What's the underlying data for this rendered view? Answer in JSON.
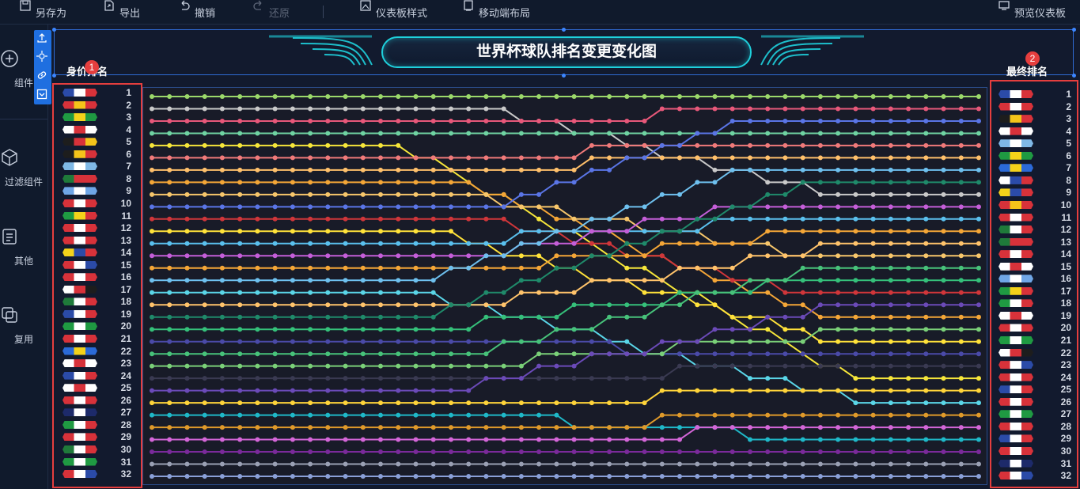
{
  "toolbar": {
    "save_as": "另存为",
    "export": "导出",
    "undo": "撤销",
    "redo": "还原",
    "dashboard_style": "仪表板样式",
    "mobile_layout": "移动端布局",
    "preview": "预览仪表板"
  },
  "sidebar": {
    "items": [
      {
        "label": "组件",
        "icon": "plus-circle-icon"
      },
      {
        "label": "过滤组件",
        "icon": "cube-icon"
      },
      {
        "label": "其他",
        "icon": "document-icon"
      },
      {
        "label": "复用",
        "icon": "layers-icon"
      }
    ]
  },
  "float_tools": [
    "upload-icon",
    "crosshair-icon",
    "link-icon",
    "checkbox-icon"
  ],
  "title": "世界杯球队排名变更变化图",
  "left_header": "身价排名",
  "right_header": "最终排名",
  "badges": {
    "left": "1",
    "right": "2"
  },
  "colors": {
    "accent": "#1fd0dc",
    "highlight": "#e53e3e",
    "selection": "#3c86ff"
  },
  "left_ranks": [
    {
      "rank": "1",
      "flag": [
        "#2b4ba8",
        "#ffffff",
        "#d8323a"
      ]
    },
    {
      "rank": "2",
      "flag": [
        "#d8323a",
        "#f4c41a",
        "#d8323a"
      ]
    },
    {
      "rank": "3",
      "flag": [
        "#1f9a42",
        "#f4d21a",
        "#1f9a42"
      ]
    },
    {
      "rank": "4",
      "flag": [
        "#ffffff",
        "#d8323a",
        "#ffffff"
      ]
    },
    {
      "rank": "5",
      "flag": [
        "#1d1d1d",
        "#d8323a",
        "#f4c41a"
      ]
    },
    {
      "rank": "6",
      "flag": [
        "#1d1d1d",
        "#f4c41a",
        "#d8323a"
      ]
    },
    {
      "rank": "7",
      "flag": [
        "#7fb8e6",
        "#ffffff",
        "#7fb8e6"
      ]
    },
    {
      "rank": "8",
      "flag": [
        "#1f7a3a",
        "#d8323a",
        "#d8323a"
      ]
    },
    {
      "rank": "9",
      "flag": [
        "#6fa6e6",
        "#ffffff",
        "#6fa6e6"
      ]
    },
    {
      "rank": "10",
      "flag": [
        "#d8323a",
        "#ffffff",
        "#d8323a"
      ]
    },
    {
      "rank": "11",
      "flag": [
        "#1f9a42",
        "#f4d21a",
        "#d8323a"
      ]
    },
    {
      "rank": "12",
      "flag": [
        "#d8323a",
        "#ffffff",
        "#d8323a"
      ]
    },
    {
      "rank": "13",
      "flag": [
        "#d8323a",
        "#ffffff",
        "#d8323a"
      ]
    },
    {
      "rank": "14",
      "flag": [
        "#f4d21a",
        "#2b4ba8",
        "#d8323a"
      ]
    },
    {
      "rank": "15",
      "flag": [
        "#d8323a",
        "#ffffff",
        "#2b4ba8"
      ]
    },
    {
      "rank": "16",
      "flag": [
        "#d8323a",
        "#ffffff",
        "#d8323a"
      ]
    },
    {
      "rank": "17",
      "flag": [
        "#ffffff",
        "#d8323a",
        "#1d1d1d"
      ]
    },
    {
      "rank": "18",
      "flag": [
        "#1f7a3a",
        "#ffffff",
        "#d8323a"
      ]
    },
    {
      "rank": "19",
      "flag": [
        "#2b4ba8",
        "#ffffff",
        "#d8323a"
      ]
    },
    {
      "rank": "20",
      "flag": [
        "#1f9a42",
        "#ffffff",
        "#1f9a42"
      ]
    },
    {
      "rank": "21",
      "flag": [
        "#d8323a",
        "#ffffff",
        "#d8323a"
      ]
    },
    {
      "rank": "22",
      "flag": [
        "#2b6ad8",
        "#f4d21a",
        "#2b6ad8"
      ]
    },
    {
      "rank": "23",
      "flag": [
        "#ffffff",
        "#d8323a",
        "#ffffff"
      ]
    },
    {
      "rank": "24",
      "flag": [
        "#2b4ba8",
        "#ffffff",
        "#d8323a"
      ]
    },
    {
      "rank": "25",
      "flag": [
        "#ffffff",
        "#d8323a",
        "#ffffff"
      ]
    },
    {
      "rank": "26",
      "flag": [
        "#d8323a",
        "#ffffff",
        "#d8323a"
      ]
    },
    {
      "rank": "27",
      "flag": [
        "#1d2a6a",
        "#ffffff",
        "#1d2a6a"
      ]
    },
    {
      "rank": "28",
      "flag": [
        "#1f9a42",
        "#ffffff",
        "#d8323a"
      ]
    },
    {
      "rank": "29",
      "flag": [
        "#d8323a",
        "#ffffff",
        "#d8323a"
      ]
    },
    {
      "rank": "30",
      "flag": [
        "#1f7a3a",
        "#ffffff",
        "#d8323a"
      ]
    },
    {
      "rank": "31",
      "flag": [
        "#1f9a42",
        "#ffffff",
        "#1f9a42"
      ]
    },
    {
      "rank": "32",
      "flag": [
        "#d8323a",
        "#ffffff",
        "#2b4ba8"
      ]
    }
  ],
  "right_ranks": [
    {
      "rank": "1",
      "flag": [
        "#2b4ba8",
        "#ffffff",
        "#d8323a"
      ]
    },
    {
      "rank": "2",
      "flag": [
        "#d8323a",
        "#ffffff",
        "#d8323a"
      ]
    },
    {
      "rank": "3",
      "flag": [
        "#1d1d1d",
        "#f4c41a",
        "#d8323a"
      ]
    },
    {
      "rank": "4",
      "flag": [
        "#ffffff",
        "#d8323a",
        "#ffffff"
      ]
    },
    {
      "rank": "5",
      "flag": [
        "#7fb8e6",
        "#ffffff",
        "#7fb8e6"
      ]
    },
    {
      "rank": "6",
      "flag": [
        "#1f9a42",
        "#f4d21a",
        "#1f9a42"
      ]
    },
    {
      "rank": "7",
      "flag": [
        "#2b6ad8",
        "#f4d21a",
        "#2b6ad8"
      ]
    },
    {
      "rank": "8",
      "flag": [
        "#ffffff",
        "#2b4ba8",
        "#d8323a"
      ]
    },
    {
      "rank": "9",
      "flag": [
        "#f4d21a",
        "#2b4ba8",
        "#d8323a"
      ]
    },
    {
      "rank": "10",
      "flag": [
        "#d8323a",
        "#f4c41a",
        "#d8323a"
      ]
    },
    {
      "rank": "11",
      "flag": [
        "#d8323a",
        "#ffffff",
        "#d8323a"
      ]
    },
    {
      "rank": "12",
      "flag": [
        "#1f7a3a",
        "#ffffff",
        "#d8323a"
      ]
    },
    {
      "rank": "13",
      "flag": [
        "#1f7a3a",
        "#d8323a",
        "#d8323a"
      ]
    },
    {
      "rank": "14",
      "flag": [
        "#d8323a",
        "#ffffff",
        "#d8323a"
      ]
    },
    {
      "rank": "15",
      "flag": [
        "#ffffff",
        "#d8323a",
        "#ffffff"
      ]
    },
    {
      "rank": "16",
      "flag": [
        "#6fa6e6",
        "#ffffff",
        "#6fa6e6"
      ]
    },
    {
      "rank": "17",
      "flag": [
        "#1f9a42",
        "#f4d21a",
        "#d8323a"
      ]
    },
    {
      "rank": "18",
      "flag": [
        "#1f9a42",
        "#ffffff",
        "#d8323a"
      ]
    },
    {
      "rank": "19",
      "flag": [
        "#ffffff",
        "#d8323a",
        "#ffffff"
      ]
    },
    {
      "rank": "20",
      "flag": [
        "#d8323a",
        "#ffffff",
        "#d8323a"
      ]
    },
    {
      "rank": "21",
      "flag": [
        "#1f9a42",
        "#ffffff",
        "#1f9a42"
      ]
    },
    {
      "rank": "22",
      "flag": [
        "#ffffff",
        "#d8323a",
        "#1d1d1d"
      ]
    },
    {
      "rank": "23",
      "flag": [
        "#d8323a",
        "#ffffff",
        "#2b4ba8"
      ]
    },
    {
      "rank": "24",
      "flag": [
        "#d8323a",
        "#ffffff",
        "#d8323a"
      ]
    },
    {
      "rank": "25",
      "flag": [
        "#2b4ba8",
        "#ffffff",
        "#d8323a"
      ]
    },
    {
      "rank": "26",
      "flag": [
        "#d8323a",
        "#ffffff",
        "#d8323a"
      ]
    },
    {
      "rank": "27",
      "flag": [
        "#1f9a42",
        "#ffffff",
        "#1f9a42"
      ]
    },
    {
      "rank": "28",
      "flag": [
        "#d8323a",
        "#ffffff",
        "#d8323a"
      ]
    },
    {
      "rank": "29",
      "flag": [
        "#2b4ba8",
        "#ffffff",
        "#d8323a"
      ]
    },
    {
      "rank": "30",
      "flag": [
        "#d8323a",
        "#ffffff",
        "#d8323a"
      ]
    },
    {
      "rank": "31",
      "flag": [
        "#1d2a6a",
        "#ffffff",
        "#1d2a6a"
      ]
    },
    {
      "rank": "32",
      "flag": [
        "#d8323a",
        "#ffffff",
        "#2b4ba8"
      ]
    }
  ],
  "chart_data": {
    "type": "line",
    "title": "世界杯球队排名变更变化图",
    "x_points": 48,
    "ylim": [
      1,
      32
    ],
    "y_inverted": true,
    "series": [
      {
        "color": "#9bd86a",
        "start": 1,
        "end": 1,
        "transition": [
          20,
          24
        ]
      },
      {
        "color": "#c9c9c9",
        "start": 2,
        "end": 9,
        "transition": [
          19,
          39
        ]
      },
      {
        "color": "#e8587a",
        "start": 3,
        "end": 2,
        "transition": [
          25,
          31
        ]
      },
      {
        "color": "#6fd3a2",
        "start": 4,
        "end": 4,
        "transition": [
          20,
          24
        ]
      },
      {
        "color": "#f6e63a",
        "start": 5,
        "end": 24,
        "transition": [
          14,
          40
        ]
      },
      {
        "color": "#f07a7a",
        "start": 6,
        "end": 5,
        "transition": [
          15,
          33
        ]
      },
      {
        "color": "#ffc06b",
        "start": 7,
        "end": 6,
        "transition": [
          17,
          31
        ]
      },
      {
        "color": "#f4a637",
        "start": 8,
        "end": 19,
        "transition": [
          18,
          38
        ]
      },
      {
        "color": "#f7c66b",
        "start": 9,
        "end": 14,
        "transition": [
          18,
          37
        ]
      },
      {
        "color": "#5a75e6",
        "start": 10,
        "end": 3,
        "transition": [
          20,
          33
        ]
      },
      {
        "color": "#d0363a",
        "start": 11,
        "end": 17,
        "transition": [
          19,
          37
        ]
      },
      {
        "color": "#ffe23a",
        "start": 12,
        "end": 21,
        "transition": [
          16,
          39
        ]
      },
      {
        "color": "#5ac0ee",
        "start": 13,
        "end": 11,
        "transition": [
          15,
          37
        ]
      },
      {
        "color": "#c45ed8",
        "start": 14,
        "end": 10,
        "transition": [
          19,
          33
        ]
      },
      {
        "color": "#f4a637",
        "start": 15,
        "end": 12,
        "transition": [
          20,
          37
        ]
      },
      {
        "color": "#6ec0ee",
        "start": 16,
        "end": 7,
        "transition": [
          15,
          34
        ]
      },
      {
        "color": "#5ad6e8",
        "start": 17,
        "end": 26,
        "transition": [
          15,
          41
        ]
      },
      {
        "color": "#ffc36b",
        "start": 18,
        "end": 13,
        "transition": [
          18,
          40
        ]
      },
      {
        "color": "#1f8a6a",
        "start": 19,
        "end": 8,
        "transition": [
          16,
          37
        ]
      },
      {
        "color": "#35c07a",
        "start": 20,
        "end": 16,
        "transition": [
          16,
          37
        ]
      },
      {
        "color": "#4a4aa8",
        "start": 21,
        "end": 22,
        "transition": [
          17,
          37
        ]
      },
      {
        "color": "#47c27a",
        "start": 22,
        "end": 15,
        "transition": [
          18,
          38
        ]
      },
      {
        "color": "#7ad078",
        "start": 23,
        "end": 20,
        "transition": [
          18,
          41
        ]
      },
      {
        "color": "#3a3a52",
        "start": 24,
        "end": 23,
        "transition": [
          18,
          41
        ]
      },
      {
        "color": "#6b4ab8",
        "start": 25,
        "end": 18,
        "transition": [
          17,
          39
        ]
      },
      {
        "color": "#ffd43a",
        "start": 26,
        "end": 25,
        "transition": [
          18,
          38
        ]
      },
      {
        "color": "#1fb8c8",
        "start": 27,
        "end": 29,
        "transition": [
          18,
          39
        ]
      },
      {
        "color": "#e09a2a",
        "start": 28,
        "end": 27,
        "transition": [
          19,
          37
        ]
      },
      {
        "color": "#d466d8",
        "start": 29,
        "end": 28,
        "transition": [
          20,
          40
        ]
      },
      {
        "color": "#7a2a9a",
        "start": 30,
        "end": 30,
        "transition": [
          20,
          40
        ]
      },
      {
        "color": "#9aa0b4",
        "start": 31,
        "end": 31,
        "transition": [
          20,
          40
        ]
      },
      {
        "color": "#8aa0d8",
        "start": 32,
        "end": 32,
        "transition": [
          20,
          40
        ]
      }
    ]
  }
}
